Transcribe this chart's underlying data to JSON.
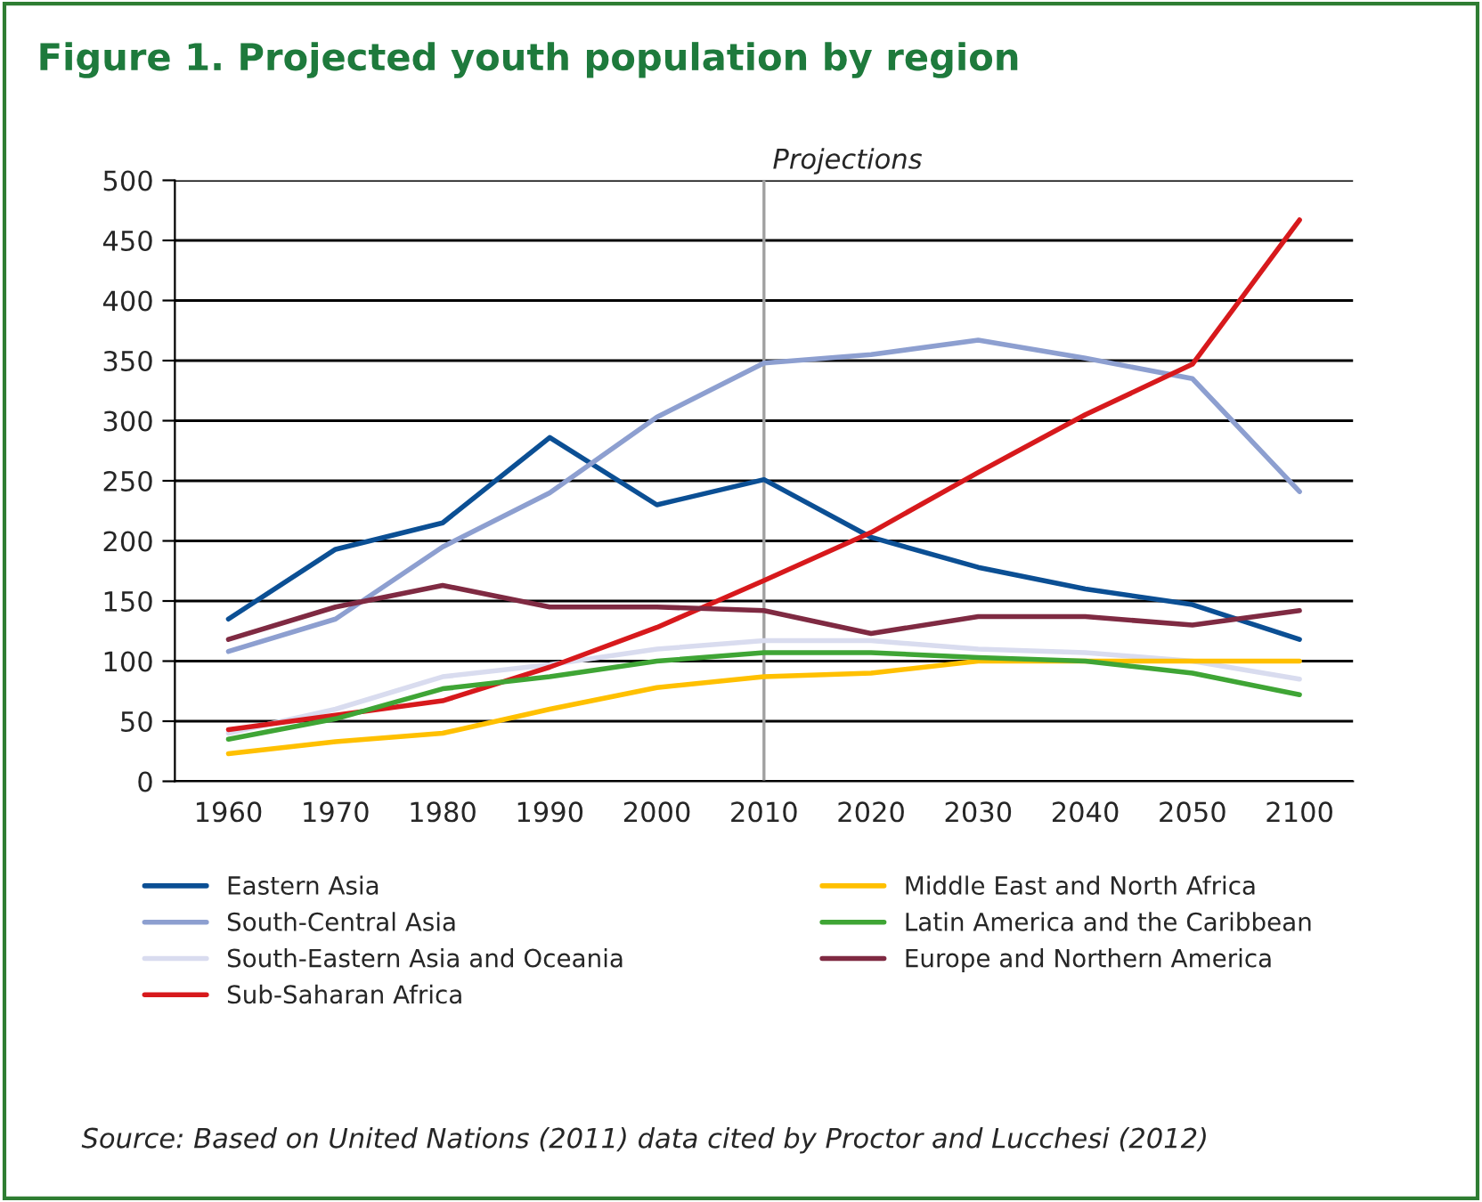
{
  "chart_data": {
    "type": "line",
    "title": "Figure 1. Projected youth population by region",
    "categories": [
      "1960",
      "1970",
      "1980",
      "1990",
      "2000",
      "2010",
      "2020",
      "2030",
      "2040",
      "2050",
      "2100"
    ],
    "series": [
      {
        "name": "Eastern Asia",
        "color": "#0b4f94",
        "values": [
          135,
          193,
          215,
          286,
          230,
          251,
          203,
          178,
          160,
          147,
          118
        ]
      },
      {
        "name": "South-Central Asia",
        "color": "#8d9fd0",
        "values": [
          108,
          135,
          195,
          240,
          303,
          348,
          355,
          367,
          352,
          335,
          241
        ]
      },
      {
        "name": "South-Eastern Asia and Oceania",
        "color": "#d9dcef",
        "values": [
          40,
          60,
          87,
          97,
          110,
          117,
          117,
          110,
          107,
          100,
          85
        ]
      },
      {
        "name": "Sub-Saharan Africa",
        "color": "#d7191c",
        "values": [
          43,
          55,
          67,
          95,
          128,
          167,
          207,
          257,
          305,
          347,
          467
        ]
      },
      {
        "name": "Middle East and North Africa",
        "color": "#ffc000",
        "values": [
          23,
          33,
          40,
          60,
          78,
          87,
          90,
          100,
          100,
          100,
          100
        ]
      },
      {
        "name": "Latin America and the Caribbean",
        "color": "#3fa535",
        "values": [
          35,
          52,
          77,
          87,
          100,
          107,
          107,
          103,
          100,
          90,
          72
        ]
      },
      {
        "name": "Europe and Northern America",
        "color": "#7f2a42",
        "values": [
          118,
          145,
          163,
          145,
          145,
          142,
          123,
          137,
          137,
          130,
          142
        ]
      }
    ],
    "ylim": [
      0,
      500
    ],
    "yticks": [
      0,
      50,
      100,
      150,
      200,
      250,
      300,
      350,
      400,
      450,
      500
    ],
    "grid": "y",
    "legend": "bottom",
    "marker": "none",
    "line_style": "solid",
    "ref_lines": [
      {
        "axis": "x",
        "value": "2010",
        "label": "Projections",
        "color": "#a0a0a0"
      }
    ],
    "annotations": [
      "Source: Based on United Nations (2011) data cited by Proctor and Lucchesi (2012)"
    ]
  }
}
